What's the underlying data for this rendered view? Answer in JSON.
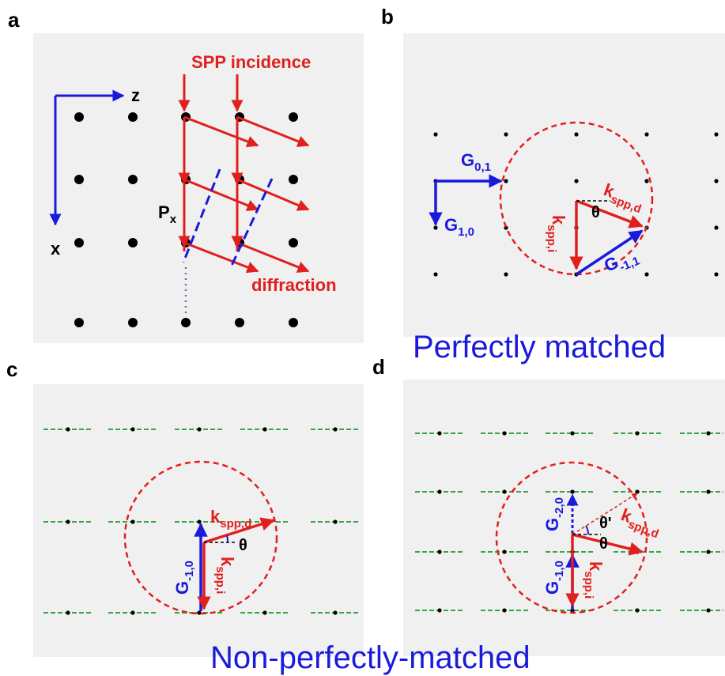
{
  "panels": {
    "a": {
      "label": "a",
      "axis_z": "z",
      "axis_x": "x",
      "incidence": "SPP incidence",
      "period": "P",
      "period_sub": "x",
      "diffraction": "diffraction"
    },
    "b": {
      "label": "b",
      "g01": "G",
      "g01_sub": "0,1",
      "g10": "G",
      "g10_sub": "1,0",
      "gm11": "G",
      "gm11_sub": "-1,1",
      "kd": "k",
      "kd_sub": "spp,d",
      "ki": "k",
      "ki_sub": "spp,i",
      "theta": "θ"
    },
    "c": {
      "label": "c",
      "gm10": "G",
      "gm10_sub": "-1,0",
      "kd": "k",
      "kd_sub": "spp,d",
      "ki": "k",
      "ki_sub": "spp,i",
      "theta": "θ"
    },
    "d": {
      "label": "d",
      "gm20": "G",
      "gm20_sub": "-2,0",
      "gm10": "G",
      "gm10_sub": "-1,0",
      "kd": "k",
      "kd_sub": "spp,d",
      "ki": "k",
      "ki_sub": "spp,i",
      "theta": "θ",
      "theta_prime": "θ'"
    }
  },
  "captions": {
    "matched": "Perfectly matched",
    "non_matched": "Non-perfectly-matched"
  },
  "colors": {
    "red": "#e0201e",
    "blue": "#1a1adc",
    "green": "#1e9a2a",
    "panel_bg": "#f0f0f0",
    "dot": "#000000"
  }
}
